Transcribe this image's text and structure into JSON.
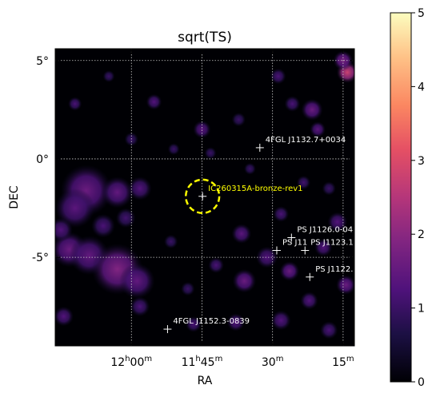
{
  "chart_data": {
    "type": "heatmap",
    "title": "sqrt(TS)",
    "xlabel": "RA",
    "ylabel": "DEC",
    "colormap": "magma",
    "colorbar": {
      "min": 0,
      "max": 5,
      "ticks": [
        "0",
        "1",
        "2",
        "3",
        "4",
        "5"
      ]
    },
    "x_ticks": [
      {
        "base": "12",
        "h": "h",
        "mm": "00",
        "m": "m"
      },
      {
        "base": "11",
        "h": "h",
        "mm": "45",
        "m": "m"
      },
      {
        "base": "",
        "h": "",
        "mm": "30",
        "m": "m"
      },
      {
        "base": "",
        "h": "",
        "mm": "15",
        "m": "m"
      }
    ],
    "y_ticks": [
      "5°",
      "0°",
      "-5°"
    ],
    "grid": true,
    "ra_range_hours": [
      12.27,
      11.21
    ],
    "dec_range_deg": [
      -9.5,
      5.6
    ],
    "sources": [
      {
        "label": "4FGL J1132.7+0034",
        "ra": 11.545,
        "dec": 0.57,
        "highlight": false
      },
      {
        "label": "IC260315A-bronze-rev1",
        "ra": 11.748,
        "dec": -1.9,
        "highlight": true
      },
      {
        "label": "PS J1126.0-04",
        "ra": 11.433,
        "dec": -4.0,
        "highlight": false
      },
      {
        "label": "PS J11",
        "ra": 11.485,
        "dec": -4.65,
        "highlight": false
      },
      {
        "label": "PS J1123.1",
        "ra": 11.385,
        "dec": -4.65,
        "highlight": false
      },
      {
        "label": "PS J1122.",
        "ra": 11.368,
        "dec": -6.0,
        "highlight": false
      },
      {
        "label": "4FGL J1152.3-0839",
        "ra": 11.872,
        "dec": -8.65,
        "highlight": false
      }
    ],
    "roi_circle": {
      "ra": 11.748,
      "dec": -1.9,
      "radius_deg": 0.85,
      "color": "#ffff00",
      "style": "dashed"
    },
    "blobs": [
      {
        "ra": 12.16,
        "dec": -1.6,
        "value": 1.6,
        "r": 1.3
      },
      {
        "ra": 12.2,
        "dec": -2.5,
        "value": 1.4,
        "r": 1.0
      },
      {
        "ra": 12.05,
        "dec": -1.7,
        "value": 1.5,
        "r": 0.8
      },
      {
        "ra": 11.97,
        "dec": -1.5,
        "value": 1.3,
        "r": 0.6
      },
      {
        "ra": 12.22,
        "dec": -4.6,
        "value": 1.6,
        "r": 0.9
      },
      {
        "ra": 12.15,
        "dec": -4.9,
        "value": 1.5,
        "r": 1.0
      },
      {
        "ra": 12.05,
        "dec": -5.6,
        "value": 1.9,
        "r": 1.3
      },
      {
        "ra": 11.98,
        "dec": -6.2,
        "value": 1.5,
        "r": 0.9
      },
      {
        "ra": 12.1,
        "dec": -3.4,
        "value": 1.2,
        "r": 0.6
      },
      {
        "ra": 12.02,
        "dec": -3.0,
        "value": 1.1,
        "r": 0.5
      },
      {
        "ra": 11.97,
        "dec": -7.5,
        "value": 1.2,
        "r": 0.5
      },
      {
        "ra": 12.24,
        "dec": -8.0,
        "value": 1.3,
        "r": 0.5
      },
      {
        "ra": 12.25,
        "dec": -3.6,
        "value": 1.3,
        "r": 0.6
      },
      {
        "ra": 11.235,
        "dec": 4.4,
        "value": 2.8,
        "r": 0.55
      },
      {
        "ra": 11.25,
        "dec": 5.0,
        "value": 1.8,
        "r": 0.5
      },
      {
        "ra": 11.36,
        "dec": 2.5,
        "value": 1.6,
        "r": 0.55
      },
      {
        "ra": 11.34,
        "dec": 1.5,
        "value": 1.4,
        "r": 0.4
      },
      {
        "ra": 11.43,
        "dec": 2.8,
        "value": 1.2,
        "r": 0.4
      },
      {
        "ra": 11.48,
        "dec": 4.2,
        "value": 1.2,
        "r": 0.4
      },
      {
        "ra": 11.75,
        "dec": 1.5,
        "value": 1.4,
        "r": 0.45
      },
      {
        "ra": 11.92,
        "dec": 2.9,
        "value": 1.3,
        "r": 0.4
      },
      {
        "ra": 12.2,
        "dec": 2.8,
        "value": 1.2,
        "r": 0.35
      },
      {
        "ra": 11.62,
        "dec": 2.0,
        "value": 1.0,
        "r": 0.35
      },
      {
        "ra": 12.0,
        "dec": 1.0,
        "value": 1.0,
        "r": 0.35
      },
      {
        "ra": 11.85,
        "dec": 0.5,
        "value": 1.0,
        "r": 0.3
      },
      {
        "ra": 12.08,
        "dec": 4.2,
        "value": 1.0,
        "r": 0.3
      },
      {
        "ra": 11.6,
        "dec": -6.2,
        "value": 1.6,
        "r": 0.6
      },
      {
        "ra": 11.52,
        "dec": -5.0,
        "value": 1.3,
        "r": 0.55
      },
      {
        "ra": 11.61,
        "dec": -3.8,
        "value": 1.4,
        "r": 0.5
      },
      {
        "ra": 11.47,
        "dec": -2.8,
        "value": 1.2,
        "r": 0.4
      },
      {
        "ra": 11.44,
        "dec": -5.7,
        "value": 1.6,
        "r": 0.5
      },
      {
        "ra": 11.32,
        "dec": -4.5,
        "value": 1.3,
        "r": 0.45
      },
      {
        "ra": 11.27,
        "dec": -3.2,
        "value": 1.3,
        "r": 0.5
      },
      {
        "ra": 11.24,
        "dec": -6.4,
        "value": 1.6,
        "r": 0.5
      },
      {
        "ra": 11.37,
        "dec": -7.2,
        "value": 1.3,
        "r": 0.45
      },
      {
        "ra": 11.47,
        "dec": -8.2,
        "value": 1.3,
        "r": 0.5
      },
      {
        "ra": 11.3,
        "dec": -8.7,
        "value": 1.2,
        "r": 0.45
      },
      {
        "ra": 11.63,
        "dec": -8.3,
        "value": 1.3,
        "r": 0.45
      },
      {
        "ra": 11.78,
        "dec": -8.4,
        "value": 1.2,
        "r": 0.4
      },
      {
        "ra": 11.86,
        "dec": -4.2,
        "value": 1.0,
        "r": 0.35
      },
      {
        "ra": 11.8,
        "dec": -6.6,
        "value": 1.0,
        "r": 0.35
      },
      {
        "ra": 11.7,
        "dec": -5.4,
        "value": 1.2,
        "r": 0.4
      },
      {
        "ra": 11.39,
        "dec": -1.2,
        "value": 1.1,
        "r": 0.35
      },
      {
        "ra": 11.58,
        "dec": -0.5,
        "value": 1.0,
        "r": 0.3
      },
      {
        "ra": 11.72,
        "dec": 0.3,
        "value": 1.0,
        "r": 0.3
      },
      {
        "ra": 11.3,
        "dec": -1.5,
        "value": 1.0,
        "r": 0.35
      }
    ]
  }
}
